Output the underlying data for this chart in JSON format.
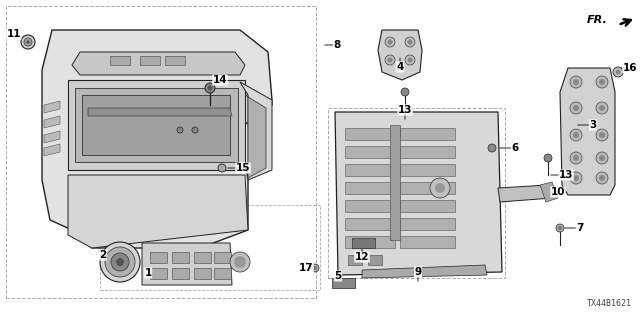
{
  "bg_color": "#ffffff",
  "diagram_id": "TX44B1621",
  "line_color": "#222222",
  "label_fontsize": 7.5,
  "dashed_color": "#aaaaaa",
  "parts_labels": {
    "1": [
      148,
      285,
      0,
      10
    ],
    "2": [
      118,
      265,
      -8,
      10
    ],
    "3": [
      575,
      120,
      12,
      0
    ],
    "4": [
      398,
      60,
      0,
      -10
    ],
    "5": [
      340,
      287,
      0,
      10
    ],
    "6": [
      497,
      148,
      12,
      0
    ],
    "7": [
      568,
      230,
      12,
      0
    ],
    "8": [
      320,
      45,
      10,
      0
    ],
    "9": [
      400,
      287,
      0,
      10
    ],
    "10": [
      538,
      192,
      12,
      0
    ],
    "11": [
      28,
      45,
      -10,
      0
    ],
    "12": [
      352,
      230,
      0,
      12
    ],
    "13a": [
      433,
      125,
      0,
      10
    ],
    "13b": [
      545,
      162,
      12,
      0
    ],
    "14": [
      210,
      90,
      8,
      -8
    ],
    "15": [
      218,
      168,
      12,
      0
    ],
    "16": [
      598,
      68,
      8,
      0
    ],
    "17": [
      323,
      270,
      -10,
      0
    ]
  }
}
